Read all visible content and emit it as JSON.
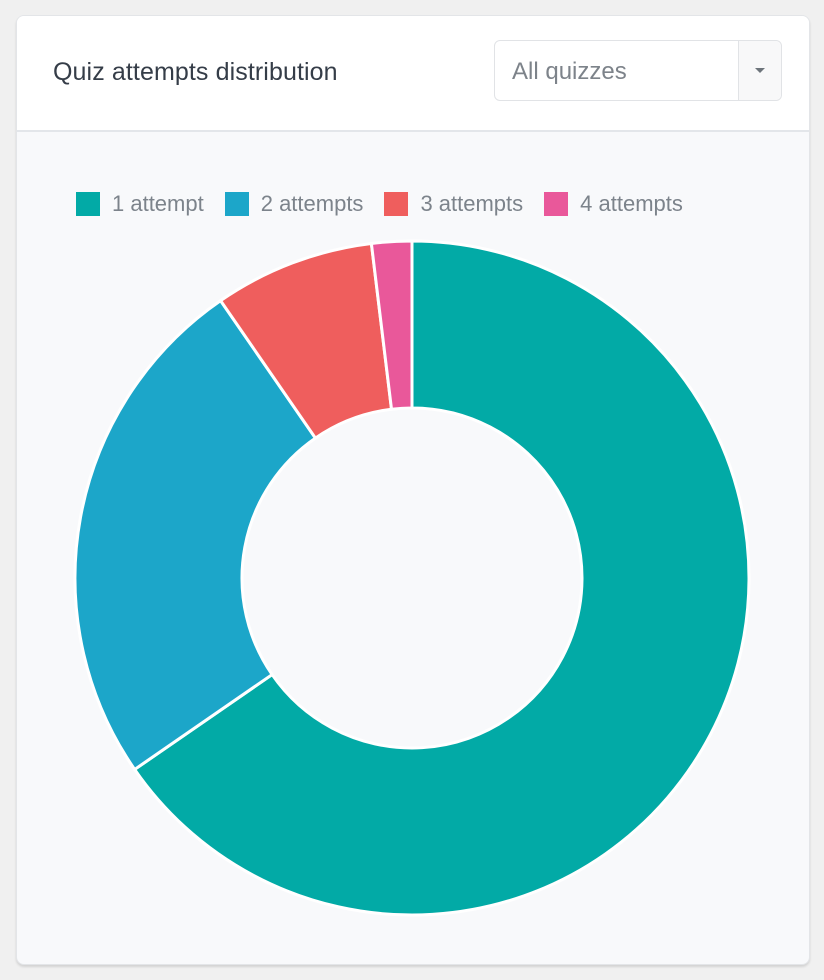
{
  "card": {
    "title": "Quiz attempts distribution",
    "filter": {
      "selected": "All quizzes",
      "icon": "caret-down-icon"
    }
  },
  "colors": {
    "teal": "#02aaa6",
    "blue": "#1ca6c9",
    "red": "#ef5e5d",
    "pink": "#e9589a"
  },
  "chart_data": {
    "type": "pie",
    "variant": "doughnut",
    "title": "Quiz attempts distribution",
    "categories": [
      "1 attempt",
      "2 attempts",
      "3 attempts",
      "4 attempts"
    ],
    "values": [
      34,
      13,
      4,
      1
    ],
    "percent_estimates": [
      65.4,
      25.0,
      7.7,
      1.9
    ],
    "colors": [
      "#02aaa6",
      "#1ca6c9",
      "#ef5e5d",
      "#e9589a"
    ],
    "legend_position": "top",
    "start_angle": "12 o'clock, clockwise"
  }
}
